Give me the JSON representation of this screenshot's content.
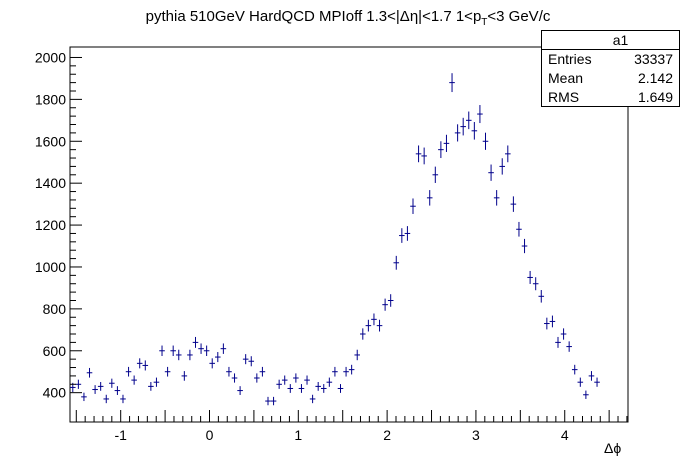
{
  "chart_data": {
    "type": "scatter",
    "title": "pythia 510GeV HardQCD MPIoff 1.3<|Δη|<1.7 1<p",
    "title_sub": "T",
    "title_suffix": "<3 GeV/c",
    "xlabel": "Δϕ",
    "ylabel": "",
    "xlim": [
      -1.5708,
      4.7124
    ],
    "ylim": [
      260,
      2050
    ],
    "xticks": [
      -1,
      0,
      1,
      2,
      3,
      4
    ],
    "yticks": [
      400,
      600,
      800,
      1000,
      1200,
      1400,
      1600,
      1800,
      2000
    ],
    "grid": false,
    "marker_color": "#00008b",
    "stats": {
      "name": "a1",
      "entries_label": "Entries",
      "entries": "33337",
      "mean_label": "Mean",
      "mean": "2.142",
      "rms_label": "RMS",
      "rms": "1.649"
    },
    "series": [
      {
        "x_start": -1.5708,
        "bin_width": 0.0628,
        "values": [
          425,
          440,
          380,
          495,
          415,
          430,
          370,
          445,
          410,
          370,
          500,
          460,
          540,
          530,
          430,
          450,
          600,
          500,
          600,
          580,
          480,
          580,
          640,
          610,
          600,
          540,
          570,
          610,
          500,
          470,
          410,
          560,
          550,
          470,
          500,
          360,
          360,
          440,
          460,
          420,
          470,
          420,
          460,
          370,
          430,
          420,
          450,
          500,
          420,
          500,
          510,
          580,
          680,
          720,
          750,
          720,
          820,
          840,
          1020,
          1150,
          1160,
          1290,
          1540,
          1530,
          1330,
          1440,
          1560,
          1590,
          1880,
          1640,
          1670,
          1700,
          1650,
          1730,
          1600,
          1450,
          1330,
          1480,
          1540,
          1300,
          1180,
          1100,
          950,
          920,
          860,
          730,
          740,
          640,
          680,
          620,
          510,
          450,
          390,
          480,
          450
        ],
        "errors": [
          22,
          22,
          20,
          23,
          21,
          21,
          20,
          22,
          21,
          20,
          23,
          22,
          24,
          24,
          21,
          22,
          25,
          23,
          25,
          25,
          23,
          25,
          26,
          25,
          25,
          24,
          24,
          25,
          23,
          22,
          21,
          24,
          24,
          22,
          23,
          20,
          20,
          22,
          22,
          21,
          22,
          21,
          22,
          20,
          21,
          21,
          22,
          23,
          21,
          23,
          23,
          25,
          27,
          28,
          28,
          28,
          29,
          30,
          33,
          35,
          35,
          37,
          40,
          40,
          37,
          39,
          40,
          41,
          45,
          41,
          42,
          42,
          42,
          43,
          41,
          39,
          37,
          39,
          40,
          37,
          35,
          34,
          31,
          31,
          30,
          28,
          28,
          26,
          27,
          25,
          23,
          22,
          20,
          23,
          22
        ]
      }
    ]
  }
}
